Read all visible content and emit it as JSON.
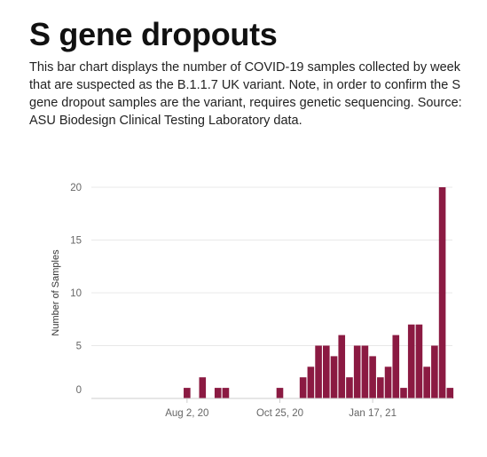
{
  "header": {
    "title": "S gene dropouts",
    "description": "This bar chart displays the number of COVID-19 samples collected by week that are suspected as the B.1.1.7 UK variant. Note, in order to confirm the S gene dropout samples are the variant, requires genetic sequencing. Source: ASU Biodesign Clinical Testing Laboratory data."
  },
  "colors": {
    "bar": "#8b1a42",
    "grid": "#e8e8e8",
    "axis": "#cccccc"
  },
  "chart_data": {
    "type": "bar",
    "title": "",
    "xlabel": "",
    "ylabel": "Number of Samples",
    "ylim": [
      0,
      20
    ],
    "yticks": [
      0,
      5,
      10,
      15,
      20
    ],
    "grid": true,
    "x_tick_labels": [
      {
        "label": "Aug 2, 20",
        "category_index": 7
      },
      {
        "label": "Oct 25, 20",
        "category_index": 19
      },
      {
        "label": "Jan 17, 21",
        "category_index": 31
      }
    ],
    "values": [
      0,
      0,
      0,
      0,
      0,
      0,
      0,
      1,
      0,
      2,
      0,
      1,
      1,
      0,
      0,
      0,
      0,
      0,
      0,
      1,
      0,
      0,
      2,
      3,
      5,
      5,
      4,
      6,
      2,
      5,
      5,
      4,
      2,
      3,
      6,
      1,
      7,
      7,
      3,
      5,
      20,
      1
    ]
  }
}
